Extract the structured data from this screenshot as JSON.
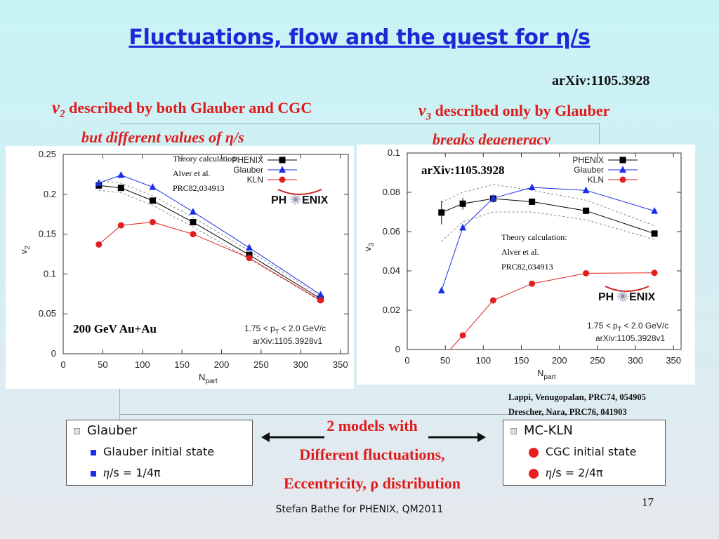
{
  "slide": {
    "title": "Fluctuations, flow and the quest for η/s",
    "arxiv_top": "arXiv:1105.3928",
    "left_heading_v": "v",
    "left_heading_sub": "2",
    "left_heading_rest": " described by both Glauber and CGC",
    "left_subheading": "but different values of η/s",
    "right_heading_v": "v",
    "right_heading_sub": "3",
    "right_heading_rest": " described only by Glauber",
    "right_subheading": "breaks degeneracy",
    "refs": [
      "Lappi, Venugopalan, PRC74, 054905",
      "Drescher, Nara, PRC76, 041903"
    ],
    "center_lines": [
      "2 models with",
      "Different fluctuations,",
      "Eccentricity, ρ distribution"
    ],
    "footer": "Stefan Bathe for PHENIX, QM2011",
    "page_number": "17"
  },
  "left_box": {
    "header": "Glauber",
    "item1": "Glauber initial state",
    "item2_eta": "η",
    "item2_rest": "/s = 1/4π"
  },
  "right_box": {
    "header": "MC-KLN",
    "item1": "CGC initial state",
    "item2_eta": "η",
    "item2_rest": "/s = 2/4π"
  },
  "chart_data": [
    {
      "type": "line",
      "xlabel": "N",
      "xlabel_sub": "part",
      "ylabel": "v",
      "ylabel_sub": "2",
      "xlim": [
        0,
        360
      ],
      "ylim": [
        0,
        0.25
      ],
      "xticks": [
        0,
        50,
        100,
        150,
        200,
        250,
        300,
        350
      ],
      "yticks": [
        0,
        0.05,
        0.1,
        0.15,
        0.2,
        0.25
      ],
      "ytick_labels": [
        "0",
        "0.05",
        "0.1",
        "0.15",
        "0.2",
        "0.25"
      ],
      "legend": {
        "placement": "top-right",
        "entries": [
          "PHENIX",
          "Glauber",
          "KLN"
        ]
      },
      "annotations": {
        "theory": [
          "Theory calculation:",
          "Alver et al.",
          "PRC82,034913"
        ],
        "logo_left": "PH",
        "logo_right": "ENIX",
        "energy": "200 GeV Au+Au",
        "pt_pre": "1.75 < p",
        "pt_sub": "T",
        "pt_post": " < 2.0 GeV/c",
        "arxiv": "arXiv:1105.3928v1"
      },
      "series": [
        {
          "name": "PHENIX",
          "color": "#000000",
          "marker": "square",
          "x": [
            45,
            73,
            113,
            164,
            235,
            325
          ],
          "y": [
            0.211,
            0.208,
            0.192,
            0.165,
            0.124,
            0.069
          ]
        },
        {
          "name": "Glauber",
          "color": "#1a2ee8",
          "marker": "triangle",
          "x": [
            45,
            73,
            113,
            164,
            235,
            325
          ],
          "y": [
            0.214,
            0.224,
            0.209,
            0.178,
            0.133,
            0.074
          ]
        },
        {
          "name": "KLN",
          "color": "#e02020",
          "marker": "circle",
          "x": [
            45,
            73,
            113,
            164,
            235,
            325
          ],
          "y": [
            0.137,
            0.161,
            0.165,
            0.15,
            0.12,
            0.067
          ]
        }
      ],
      "band": {
        "x": [
          45,
          73,
          113,
          164,
          235,
          325
        ],
        "upper": [
          0.217,
          0.214,
          0.198,
          0.171,
          0.129,
          0.072
        ],
        "lower": [
          0.205,
          0.202,
          0.186,
          0.159,
          0.119,
          0.066
        ]
      }
    },
    {
      "type": "line",
      "xlabel": "N",
      "xlabel_sub": "part",
      "ylabel": "v",
      "ylabel_sub": "3",
      "xlim": [
        0,
        360
      ],
      "ylim": [
        0,
        0.1
      ],
      "xticks": [
        0,
        50,
        100,
        150,
        200,
        250,
        300,
        350
      ],
      "yticks": [
        0,
        0.02,
        0.04,
        0.06,
        0.08,
        0.1
      ],
      "ytick_labels": [
        "0",
        "0.02",
        "0.04",
        "0.06",
        "0.08",
        "0.1"
      ],
      "legend": {
        "placement": "top-right",
        "entries": [
          "PHENIX",
          "Glauber",
          "KLN"
        ]
      },
      "annotations": {
        "arxiv_label": "arXiv:1105.3928",
        "theory": [
          "Theory calculation:",
          "Alver et al.",
          "PRC82,034913"
        ],
        "logo_left": "PH",
        "logo_right": "ENIX",
        "pt_pre": "1.75 < p",
        "pt_sub": "T",
        "pt_post": " < 2.0 GeV/c",
        "arxiv": "arXiv:1105.3928v1"
      },
      "series": [
        {
          "name": "PHENIX",
          "color": "#000000",
          "marker": "square",
          "x": [
            45,
            73,
            113,
            164,
            235,
            325
          ],
          "y": [
            0.0697,
            0.0742,
            0.0768,
            0.0752,
            0.0706,
            0.059
          ],
          "err": [
            0.006,
            0.003,
            0.002,
            0.0015,
            0.0015,
            0.001
          ]
        },
        {
          "name": "Glauber",
          "color": "#1a2ee8",
          "marker": "triangle",
          "x": [
            45,
            73,
            113,
            164,
            235,
            325
          ],
          "y": [
            0.03,
            0.062,
            0.077,
            0.0825,
            0.081,
            0.0705
          ]
        },
        {
          "name": "KLN",
          "color": "#e02020",
          "marker": "circle",
          "x": [
            45,
            73,
            113,
            164,
            235,
            325
          ],
          "y": [
            -0.005,
            0.0072,
            0.025,
            0.0335,
            0.0388,
            0.039
          ]
        }
      ],
      "band": {
        "x": [
          45,
          73,
          113,
          164,
          235,
          325
        ],
        "upper": [
          0.075,
          0.08,
          0.084,
          0.081,
          0.076,
          0.063
        ],
        "lower": [
          0.055,
          0.065,
          0.07,
          0.07,
          0.066,
          0.056
        ]
      }
    }
  ]
}
